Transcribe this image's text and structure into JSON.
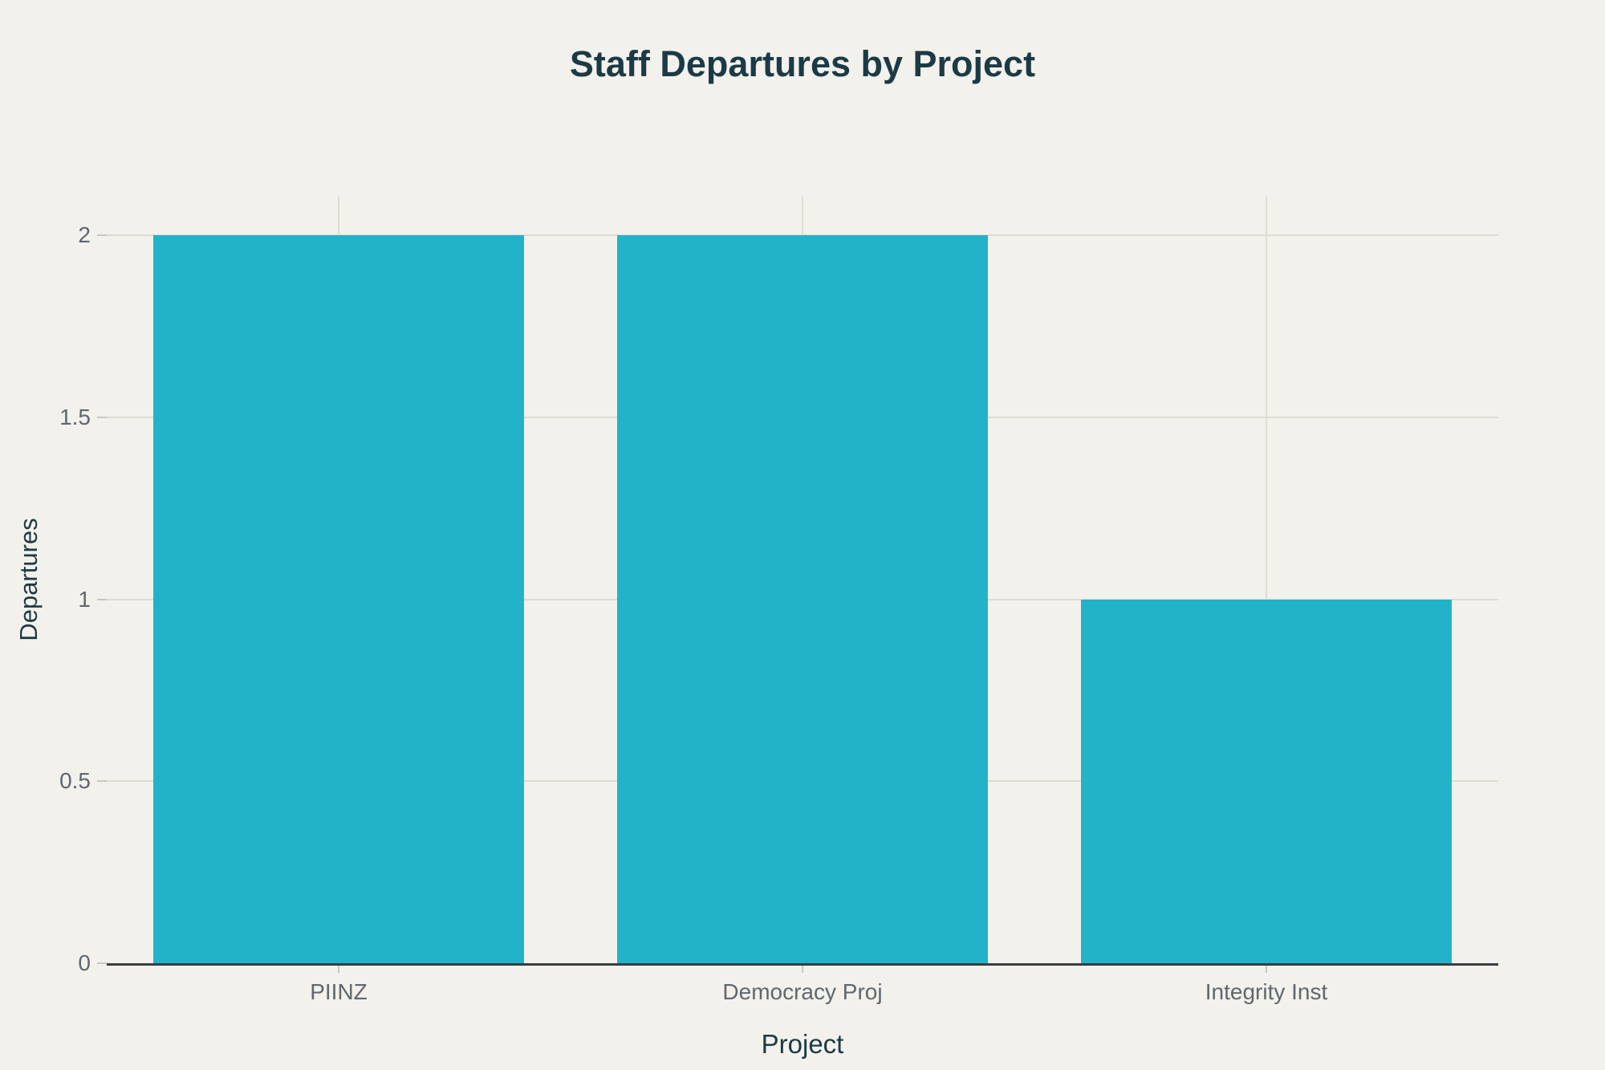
{
  "chart_data": {
    "type": "bar",
    "title": "Staff Departures by Project",
    "xlabel": "Project",
    "ylabel": "Departures",
    "categories": [
      "PIINZ",
      "Democracy Proj",
      "Integrity Inst"
    ],
    "values": [
      2,
      2,
      1
    ],
    "series_name": "Departures",
    "ylim": [
      0,
      2.1
    ],
    "yticks": [
      0,
      0.5,
      1,
      1.5,
      2
    ],
    "ytick_labels": [
      "0",
      "0.5",
      "1",
      "1.5",
      "2"
    ],
    "grid": true,
    "legend": false,
    "colors": {
      "background": "#f2f1ec",
      "bar": "#22b3c9",
      "gridline": "#dedcd5",
      "tick": "#c9c7c0",
      "axis_line": "#383d40",
      "tick_label": "#60676d",
      "title": "#1c3a45",
      "axis_title": "#1c3a45"
    }
  }
}
